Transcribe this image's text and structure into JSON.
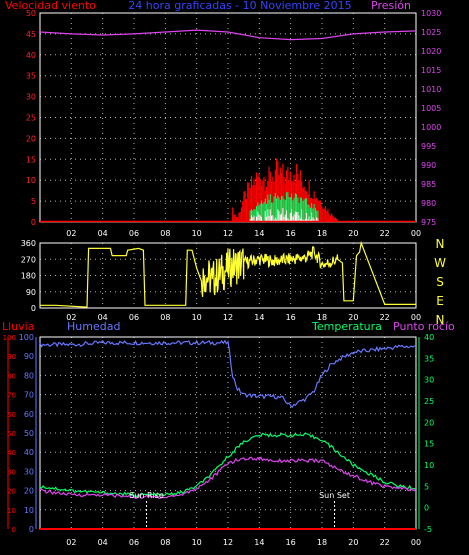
{
  "header": {
    "title": "24 hora graficadas - 10 Noviembre 2015",
    "wind_label": "Velocidad viento",
    "pressure_label": "Presión"
  },
  "colors": {
    "wind": "#ff0000",
    "gust": "#ff0000",
    "wind_avg": "#00ff66",
    "wind_low": "#ffffff",
    "pressure": "#dd44ee",
    "direction": "#ffff33",
    "rain": "#ff0000",
    "humidity": "#6677ff",
    "temperature": "#00ff66",
    "dewpoint": "#dd44ee",
    "grid": "#ffffff",
    "axis_left": "#ff2222",
    "axis_right": "#dd44ee",
    "axis_humidity": "#6677ff",
    "axis_temp": "#00ff66",
    "title": "#3344ff"
  },
  "x_ticks": [
    "02",
    "04",
    "06",
    "08",
    "10",
    "12",
    "14",
    "16",
    "18",
    "20",
    "22",
    "00"
  ],
  "compass": [
    "N",
    "W",
    "S",
    "E",
    "N"
  ],
  "lower_labels": {
    "rain": "Lluvia",
    "humidity": "Humedad",
    "temperature": "Temperatura",
    "dewpoint": "Punto rocío",
    "sunrise": "Sun Rise",
    "sunset": "Sun Set"
  },
  "chart_data": [
    {
      "type": "area",
      "name": "wind-pressure",
      "x_unit": "hour",
      "xlim": [
        0,
        24
      ],
      "ylim_left": [
        0,
        50
      ],
      "ylim_right": [
        975,
        1030
      ],
      "y_ticks_left": [
        0,
        5,
        10,
        15,
        20,
        25,
        30,
        35,
        40,
        45,
        50
      ],
      "y_ticks_right": [
        975,
        980,
        985,
        990,
        995,
        1000,
        1005,
        1010,
        1015,
        1020,
        1025,
        1030
      ],
      "gust": {
        "x": [
          12.3,
          12.6,
          13,
          13.4,
          13.8,
          14.2,
          14.6,
          15,
          15.4,
          15.8,
          16.2,
          16.6,
          17,
          17.4,
          17.8,
          18.2,
          18.6,
          19
        ],
        "values": [
          3,
          1,
          6,
          9,
          11,
          12,
          11,
          13,
          12,
          12,
          14,
          11,
          10,
          8,
          6,
          4,
          2,
          1
        ]
      },
      "wind_avg": {
        "x": [
          13.4,
          13.8,
          14.2,
          14.6,
          15,
          15.4,
          15.8,
          16.2,
          16.6,
          17,
          17.4,
          17.8
        ],
        "values": [
          3,
          4,
          5,
          6,
          6,
          7,
          7,
          6,
          6,
          5,
          4,
          3
        ]
      },
      "pressure": {
        "x": [
          0,
          2,
          4,
          6,
          8,
          10,
          12,
          14,
          16,
          18,
          20,
          22,
          24
        ],
        "values": [
          1025,
          1024.5,
          1024.2,
          1024.5,
          1025,
          1025.5,
          1025,
          1023.5,
          1023,
          1023.3,
          1024.5,
          1025,
          1025.3
        ]
      }
    },
    {
      "type": "line",
      "name": "wind-direction",
      "x_unit": "hour",
      "xlim": [
        0,
        24
      ],
      "ylim": [
        0,
        360
      ],
      "y_ticks": [
        0,
        90,
        180,
        270,
        360
      ],
      "series": [
        {
          "name": "direction",
          "x": [
            0,
            1,
            3,
            3.1,
            4.5,
            4.6,
            5.5,
            5.6,
            6.3,
            6.6,
            6.7,
            9.3,
            9.4,
            9.7,
            10,
            10.3,
            10.5,
            11,
            12,
            13,
            14,
            15,
            16,
            17,
            17.5,
            18,
            18.5,
            19,
            19.3,
            19.4,
            20,
            20.2,
            20.4,
            20.5,
            22,
            24
          ],
          "values": [
            15,
            15,
            5,
            330,
            330,
            290,
            290,
            320,
            330,
            320,
            15,
            15,
            320,
            320,
            220,
            150,
            180,
            160,
            220,
            250,
            270,
            260,
            270,
            280,
            310,
            240,
            250,
            270,
            250,
            40,
            40,
            290,
            310,
            360,
            20,
            20
          ]
        }
      ]
    },
    {
      "type": "line",
      "name": "temperature-humidity",
      "x_unit": "hour",
      "xlim": [
        0,
        24
      ],
      "ylim_humidity": [
        0,
        100
      ],
      "ylim_temp": [
        -5,
        40
      ],
      "y_ticks_left": [
        0,
        10,
        20,
        30,
        40,
        50,
        60,
        70,
        80,
        90,
        100
      ],
      "y_ticks_right": [
        -5,
        0,
        5,
        10,
        15,
        20,
        25,
        30,
        35,
        40
      ],
      "series": [
        {
          "name": "Humedad",
          "x": [
            0,
            2,
            4,
            6,
            8,
            10,
            11.5,
            12,
            12.3,
            12.6,
            13,
            14,
            15,
            15.5,
            16,
            16.5,
            17,
            17.5,
            18,
            18.5,
            19,
            20,
            21,
            22,
            23,
            24
          ],
          "values": [
            96,
            96,
            97,
            97,
            97,
            97,
            97,
            97,
            80,
            73,
            70,
            69,
            69,
            68,
            64,
            66,
            68,
            72,
            80,
            85,
            88,
            92,
            93,
            94,
            95,
            95
          ]
        },
        {
          "name": "Temperatura",
          "x": [
            0,
            1,
            2,
            4,
            6,
            7,
            8,
            9,
            10,
            11,
            12,
            13,
            14,
            15,
            16,
            17,
            18,
            19,
            20,
            21,
            22,
            23,
            24
          ],
          "values": [
            5,
            4.5,
            4,
            3.5,
            3,
            3,
            3,
            3.5,
            5,
            8,
            12,
            15.5,
            17,
            17,
            17,
            17,
            16,
            13,
            10,
            8,
            6,
            5,
            4.5
          ]
        },
        {
          "name": "Punto rocío",
          "x": [
            0,
            1,
            2,
            4,
            6,
            8,
            9,
            10,
            11,
            12,
            13,
            14,
            15,
            16,
            17,
            18,
            19,
            20,
            21,
            22,
            23,
            24
          ],
          "values": [
            4,
            3.5,
            3,
            3,
            2.5,
            2.5,
            3,
            4.5,
            7,
            10.5,
            11.5,
            11.5,
            11,
            11,
            11,
            11,
            9,
            7.5,
            6,
            5,
            4.5,
            4
          ]
        },
        {
          "name": "Lluvia",
          "x": [
            0,
            24
          ],
          "values": [
            0,
            0
          ]
        }
      ],
      "sunrise_hour": 6.8,
      "sunset_hour": 18.8
    }
  ]
}
